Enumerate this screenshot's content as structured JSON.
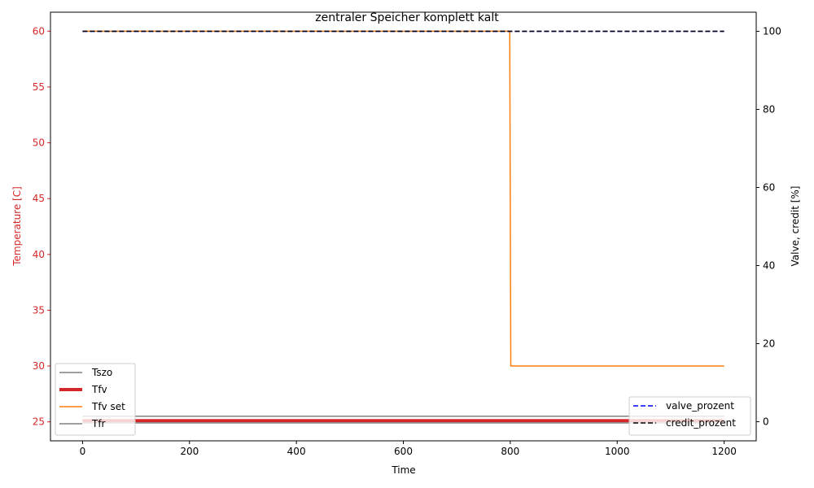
{
  "chart_data": {
    "type": "line",
    "title": "zentraler Speicher komplett kalt",
    "xlabel": "Time",
    "ylabel_left": "Temperature [C]",
    "ylabel_right": "Valve, credit [%]",
    "xlim": [
      -60,
      1260
    ],
    "ylim_left": [
      23.3,
      61.7
    ],
    "ylim_right": [
      -4.9,
      104.9
    ],
    "x_ticks": [
      0,
      200,
      400,
      600,
      800,
      1000,
      1200
    ],
    "y_ticks_left": [
      25,
      30,
      35,
      40,
      45,
      50,
      55,
      60
    ],
    "y_ticks_right": [
      0,
      20,
      40,
      60,
      80,
      100
    ],
    "left_axis_color": "#d62728",
    "grid": false,
    "legend_left_position": "lower left",
    "legend_right_position": "lower right",
    "series_left": [
      {
        "name": "Tszo",
        "color": "#808080",
        "linewidth": 1.5,
        "dash": "solid",
        "x": [
          0,
          1200
        ],
        "y": [
          25.5,
          25.5
        ]
      },
      {
        "name": "Tfv",
        "color": "#d62728",
        "linewidth": 4,
        "dash": "solid",
        "x": [
          0,
          1200
        ],
        "y": [
          25.1,
          25.1
        ]
      },
      {
        "name": "Tfv set",
        "color": "#ff7f0e",
        "linewidth": 1.5,
        "dash": "solid",
        "x": [
          0,
          799,
          801,
          1200
        ],
        "y": [
          60,
          60,
          30,
          30
        ]
      },
      {
        "name": "Tfr",
        "color": "#808080",
        "linewidth": 1.5,
        "dash": "solid",
        "x": [
          0,
          1200
        ],
        "y": [
          24.9,
          24.9
        ]
      }
    ],
    "series_right": [
      {
        "name": "valve_prozent",
        "color": "#0000ff",
        "linewidth": 1.5,
        "dash": "dashed",
        "x": [
          0,
          1200
        ],
        "y": [
          100,
          100
        ]
      },
      {
        "name": "credit_prozent",
        "color": "#000000",
        "linewidth": 1.5,
        "dash": "dashed",
        "x": [
          0,
          1200
        ],
        "y": [
          100,
          100
        ]
      }
    ]
  }
}
